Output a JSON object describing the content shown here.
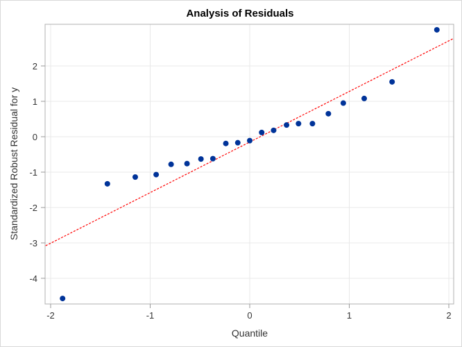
{
  "chart_data": {
    "type": "scatter",
    "title": "Analysis of Residuals",
    "xlabel": "Quantile",
    "ylabel": "Standardized Robust Residual for y",
    "xlim": [
      -2.05,
      2.05
    ],
    "ylim": [
      -4.8,
      3.2
    ],
    "xticks": [
      -2,
      -1,
      0,
      1,
      2
    ],
    "yticks": [
      -4,
      -3,
      -2,
      -1,
      0,
      1,
      2
    ],
    "grid": true,
    "legend": "none",
    "series": [
      {
        "name": "Residuals",
        "kind": "markers",
        "color": "#003399",
        "x": [
          -1.88,
          -1.43,
          -1.15,
          -0.94,
          -0.79,
          -0.63,
          -0.49,
          -0.37,
          -0.24,
          -0.12,
          0.0,
          0.12,
          0.24,
          0.37,
          0.49,
          0.63,
          0.79,
          0.94,
          1.15,
          1.43,
          1.88
        ],
        "y": [
          -4.57,
          -1.33,
          -1.14,
          -1.07,
          -0.78,
          -0.76,
          -0.63,
          -0.62,
          -0.19,
          -0.17,
          -0.11,
          0.12,
          0.18,
          0.33,
          0.37,
          0.37,
          0.65,
          0.95,
          1.08,
          1.55,
          3.02
        ]
      },
      {
        "name": "Reference Line",
        "kind": "line",
        "style": "dashed",
        "color": "#ff0000",
        "x": [
          -2.05,
          2.05
        ],
        "y": [
          -3.08,
          2.78
        ]
      }
    ]
  }
}
